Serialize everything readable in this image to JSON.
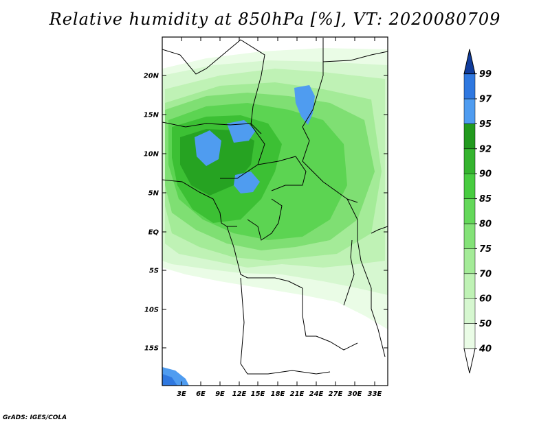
{
  "title": "Relative humidity at 850hPa [%], VT: 2020080709",
  "credit": "GrADS: IGES/COLA",
  "lat_labels": [
    "20N",
    "15N",
    "10N",
    "5N",
    "EQ",
    "5S",
    "10S",
    "15S"
  ],
  "lon_labels": [
    "3E",
    "6E",
    "9E",
    "12E",
    "15E",
    "18E",
    "21E",
    "24E",
    "27E",
    "30E",
    "33E"
  ],
  "colorbar": {
    "levels": [
      "40",
      "50",
      "60",
      "70",
      "75",
      "80",
      "85",
      "90",
      "92",
      "95",
      "97",
      "99"
    ],
    "colors": [
      "#eafce6",
      "#d6f7d0",
      "#bff2b5",
      "#a4eb98",
      "#84e278",
      "#64d85a",
      "#48cc40",
      "#35b42f",
      "#229a1e",
      "#4f9cf0",
      "#2f78e0",
      "#1d50c8",
      "#103c9c"
    ]
  }
}
